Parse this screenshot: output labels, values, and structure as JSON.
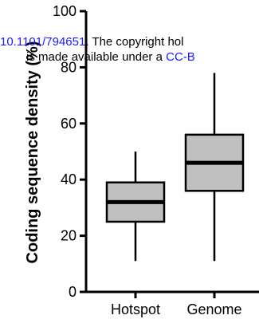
{
  "chart_data": {
    "type": "box",
    "ylabel": "Coding sequence density (%)",
    "ylim": [
      0,
      100
    ],
    "yticks": [
      0,
      20,
      40,
      60,
      80,
      100
    ],
    "categories": [
      "Hotspot",
      "Genome"
    ],
    "boxes": [
      {
        "category": "Hotspot",
        "min": 11,
        "q1": 25,
        "median": 32,
        "q3": 39,
        "max": 50
      },
      {
        "category": "Genome",
        "min": 11,
        "q1": 36,
        "median": 46,
        "q3": 56,
        "max": 78
      }
    ],
    "colors": {
      "box_fill": "#c0c0c0",
      "stroke": "#000000",
      "overlay_text": "#000000",
      "overlay_link": "#1a1aff"
    }
  },
  "overlay": {
    "line1_link": "10.1101/794651",
    "line1_text": ". The copyright hol",
    "line2_text": "is made available under a ",
    "line2_link": "CC-B"
  }
}
